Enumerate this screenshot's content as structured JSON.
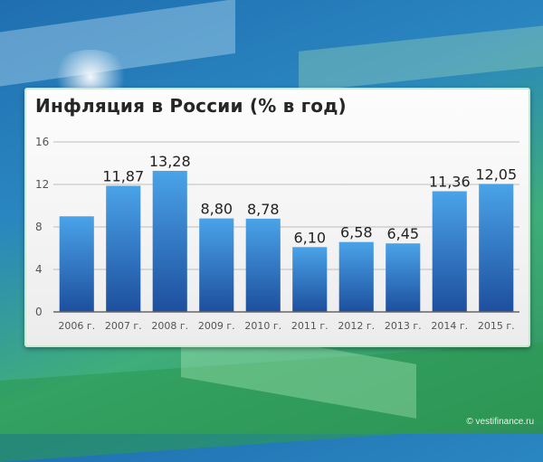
{
  "chart_data": {
    "type": "bar",
    "title": "Инфляция в России (% в год)",
    "categories": [
      "2006 г.",
      "2007 г.",
      "2008 г.",
      "2009 г.",
      "2010 г.",
      "2011 г.",
      "2012 г.",
      "2013 г.",
      "2014 г.",
      "2015 г."
    ],
    "values": [
      9.0,
      11.87,
      13.28,
      8.8,
      8.78,
      6.1,
      6.58,
      6.45,
      11.36,
      12.05
    ],
    "data_labels": [
      "",
      "11,87",
      "13,28",
      "8,80",
      "8,78",
      "6,10",
      "6,58",
      "6,45",
      "11,36",
      "12,05"
    ],
    "yticks": [
      0,
      4,
      8,
      12,
      16
    ],
    "ylim": [
      0,
      16
    ],
    "grid": true,
    "colors": {
      "bar_top": "#4aa3e8",
      "bar_bottom": "#1d4f9e",
      "grid": "#bdbdbd",
      "axis": "#666666"
    }
  },
  "footer": "© vestifinance.ru"
}
